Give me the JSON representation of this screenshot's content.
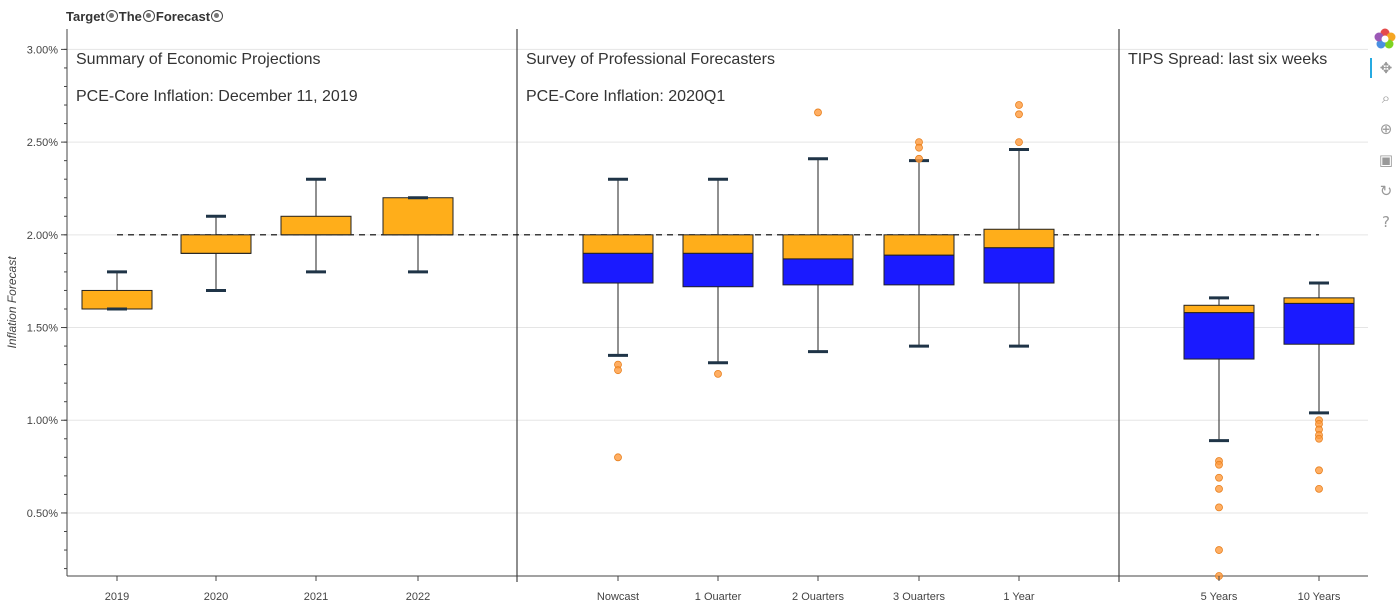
{
  "title": {
    "parts": [
      "Target",
      "The",
      "Forecast"
    ]
  },
  "toolbar": {
    "tools": [
      {
        "name": "bokeh-logo-icon"
      },
      {
        "name": "pan-icon",
        "glyph": "✥"
      },
      {
        "name": "box-zoom-icon",
        "glyph": "⌕"
      },
      {
        "name": "wheel-zoom-icon",
        "glyph": "⊕"
      },
      {
        "name": "save-icon",
        "glyph": "▣"
      },
      {
        "name": "reset-icon",
        "glyph": "↻"
      },
      {
        "name": "help-icon",
        "glyph": "?"
      }
    ]
  },
  "colors": {
    "upper_box": "#FFAE1A",
    "lower_box": "#1A1AFF",
    "outlier": "#FF9A3C",
    "whisker_cap": "#1F3447"
  },
  "chart_data": {
    "type": "box",
    "ylabel": "Inflation Forecast",
    "y_ticks": [
      "0.50%",
      "1.00%",
      "1.50%",
      "2.00%",
      "2.50%",
      "3.00%"
    ],
    "y_tick_values": [
      0.5,
      1.0,
      1.5,
      2.0,
      2.5,
      3.0
    ],
    "ylim": [
      0.16,
      3.11
    ],
    "target_line": 2.0,
    "grid": true,
    "panels": [
      {
        "heading": "Summary of Economic Projections",
        "subheading": "PCE-Core Inflation: December 11, 2019",
        "categories": [
          {
            "label": "2019",
            "lower_whisker": 1.6,
            "q1": 1.6,
            "median": 1.6,
            "q3": 1.7,
            "upper_whisker": 1.8,
            "outliers": []
          },
          {
            "label": "2020",
            "lower_whisker": 1.7,
            "q1": 1.9,
            "median": 1.9,
            "q3": 2.0,
            "upper_whisker": 2.1,
            "outliers": []
          },
          {
            "label": "2021",
            "lower_whisker": 1.8,
            "q1": 2.0,
            "median": 2.0,
            "q3": 2.1,
            "upper_whisker": 2.3,
            "outliers": []
          },
          {
            "label": "2022",
            "lower_whisker": 1.8,
            "q1": 2.0,
            "median": 2.0,
            "q3": 2.2,
            "upper_whisker": 2.2,
            "outliers": []
          }
        ]
      },
      {
        "heading": "Survey of Professional Forecasters",
        "subheading": "PCE-Core Inflation: 2020Q1",
        "categories": [
          {
            "label": "Nowcast",
            "lower_whisker": 1.35,
            "q1": 1.74,
            "median": 1.9,
            "q3": 2.0,
            "upper_whisker": 2.3,
            "outliers": [
              1.3,
              1.27,
              0.8
            ]
          },
          {
            "label": "1 Quarter",
            "lower_whisker": 1.31,
            "q1": 1.72,
            "median": 1.9,
            "q3": 2.0,
            "upper_whisker": 2.3,
            "outliers": [
              1.25
            ]
          },
          {
            "label": "2 Quarters",
            "lower_whisker": 1.37,
            "q1": 1.73,
            "median": 1.87,
            "q3": 2.0,
            "upper_whisker": 2.41,
            "outliers": [
              2.66
            ]
          },
          {
            "label": "3 Quarters",
            "lower_whisker": 1.4,
            "q1": 1.73,
            "median": 1.89,
            "q3": 2.0,
            "upper_whisker": 2.4,
            "outliers": [
              2.5,
              2.47,
              2.41
            ]
          },
          {
            "label": "1 Year",
            "lower_whisker": 1.4,
            "q1": 1.74,
            "median": 1.93,
            "q3": 2.03,
            "upper_whisker": 2.46,
            "outliers": [
              2.7,
              2.65,
              2.5
            ]
          }
        ]
      },
      {
        "heading": "TIPS Spread: last six weeks",
        "subheading": "",
        "categories": [
          {
            "label": "5 Years",
            "lower_whisker": 0.89,
            "q1": 1.33,
            "median": 1.58,
            "q3": 1.62,
            "upper_whisker": 1.66,
            "outliers": [
              0.78,
              0.76,
              0.69,
              0.63,
              0.53,
              0.3,
              0.16
            ]
          },
          {
            "label": "10 Years",
            "lower_whisker": 1.04,
            "q1": 1.41,
            "median": 1.63,
            "q3": 1.66,
            "upper_whisker": 1.74,
            "outliers": [
              1.0,
              0.98,
              0.95,
              0.92,
              0.9,
              0.73,
              0.63
            ]
          }
        ]
      }
    ]
  }
}
